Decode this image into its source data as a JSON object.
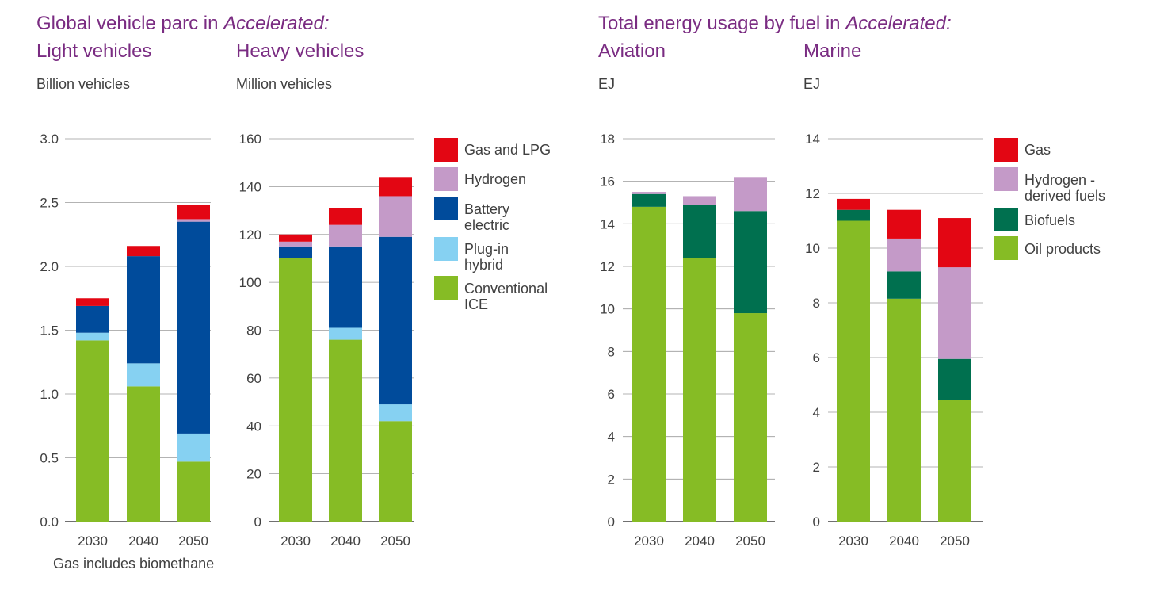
{
  "left_group": {
    "title_prefix": "Global vehicle parc in ",
    "title_italic": "Accelerated:",
    "footnote": "Gas includes biomethane"
  },
  "right_group": {
    "title_prefix": "Total energy usage by fuel in ",
    "title_italic": "Accelerated:"
  },
  "colors": {
    "gas": "#e30613",
    "hydrogen": "#c49ac8",
    "battery": "#004b9b",
    "plugin": "#86d1f2",
    "ice": "#86bc25",
    "biofuels": "#00704f",
    "oil": "#86bc25",
    "grid": "#9a9a9a",
    "axis": "#404040"
  },
  "vehicle_legend": [
    {
      "lines": [
        "Gas and LPG"
      ],
      "color_key": "gas"
    },
    {
      "lines": [
        "Hydrogen"
      ],
      "color_key": "hydrogen"
    },
    {
      "lines": [
        "Battery",
        "electric"
      ],
      "color_key": "battery"
    },
    {
      "lines": [
        "Plug-in",
        "hybrid"
      ],
      "color_key": "plugin"
    },
    {
      "lines": [
        "Conventional",
        "ICE"
      ],
      "color_key": "ice"
    }
  ],
  "energy_legend": [
    {
      "lines": [
        "Gas"
      ],
      "color_key": "gas"
    },
    {
      "lines": [
        "Hydrogen -",
        "derived fuels"
      ],
      "color_key": "hydrogen"
    },
    {
      "lines": [
        "Biofuels"
      ],
      "color_key": "biofuels"
    },
    {
      "lines": [
        "Oil products"
      ],
      "color_key": "oil"
    }
  ],
  "chart_data": [
    {
      "id": "light",
      "type": "bar",
      "stacked": true,
      "title": "Light vehicles",
      "ylabel": "Billion vehicles",
      "categories": [
        "2030",
        "2040",
        "2050"
      ],
      "ylim": [
        0,
        3
      ],
      "yticks": [
        "0.0",
        "0.5",
        "1.0",
        "1.5",
        "2.0",
        "2.5",
        "3.0"
      ],
      "series": [
        {
          "key": "ice",
          "values": [
            1.42,
            1.06,
            0.47
          ]
        },
        {
          "key": "plugin",
          "values": [
            0.06,
            0.18,
            0.22
          ]
        },
        {
          "key": "battery",
          "values": [
            0.21,
            0.84,
            1.66
          ]
        },
        {
          "key": "hydrogen",
          "values": [
            0.0,
            0.0,
            0.02
          ]
        },
        {
          "key": "gas",
          "values": [
            0.06,
            0.08,
            0.11
          ]
        }
      ]
    },
    {
      "id": "heavy",
      "type": "bar",
      "stacked": true,
      "title": "Heavy vehicles",
      "ylabel": "Million vehicles",
      "categories": [
        "2030",
        "2040",
        "2050"
      ],
      "ylim": [
        0,
        160
      ],
      "yticks": [
        "0",
        "20",
        "40",
        "60",
        "80",
        "100",
        "120",
        "140",
        "160"
      ],
      "series": [
        {
          "key": "ice",
          "values": [
            110,
            76,
            42
          ]
        },
        {
          "key": "plugin",
          "values": [
            0,
            5,
            7
          ]
        },
        {
          "key": "battery",
          "values": [
            5,
            34,
            70
          ]
        },
        {
          "key": "hydrogen",
          "values": [
            2,
            9,
            17
          ]
        },
        {
          "key": "gas",
          "values": [
            3,
            7,
            8
          ]
        }
      ]
    },
    {
      "id": "aviation",
      "type": "bar",
      "stacked": true,
      "title": "Aviation",
      "ylabel": "EJ",
      "categories": [
        "2030",
        "2040",
        "2050"
      ],
      "ylim": [
        0,
        18
      ],
      "yticks": [
        "0",
        "2",
        "4",
        "6",
        "8",
        "10",
        "12",
        "14",
        "16",
        "18"
      ],
      "series": [
        {
          "key": "oil",
          "values": [
            14.8,
            12.4,
            9.8
          ]
        },
        {
          "key": "biofuels",
          "values": [
            0.6,
            2.5,
            4.8
          ]
        },
        {
          "key": "hydrogen",
          "values": [
            0.1,
            0.4,
            1.6
          ]
        }
      ]
    },
    {
      "id": "marine",
      "type": "bar",
      "stacked": true,
      "title": "Marine",
      "ylabel": "EJ",
      "categories": [
        "2030",
        "2040",
        "2050"
      ],
      "ylim": [
        0,
        14
      ],
      "yticks": [
        "0",
        "2",
        "4",
        "6",
        "8",
        "10",
        "12",
        "14"
      ],
      "series": [
        {
          "key": "oil",
          "values": [
            11.0,
            8.15,
            4.45
          ]
        },
        {
          "key": "biofuels",
          "values": [
            0.4,
            1.0,
            1.5
          ]
        },
        {
          "key": "hydrogen",
          "values": [
            0.0,
            1.2,
            3.35
          ]
        },
        {
          "key": "gas",
          "values": [
            0.4,
            1.05,
            1.8
          ]
        }
      ]
    }
  ]
}
